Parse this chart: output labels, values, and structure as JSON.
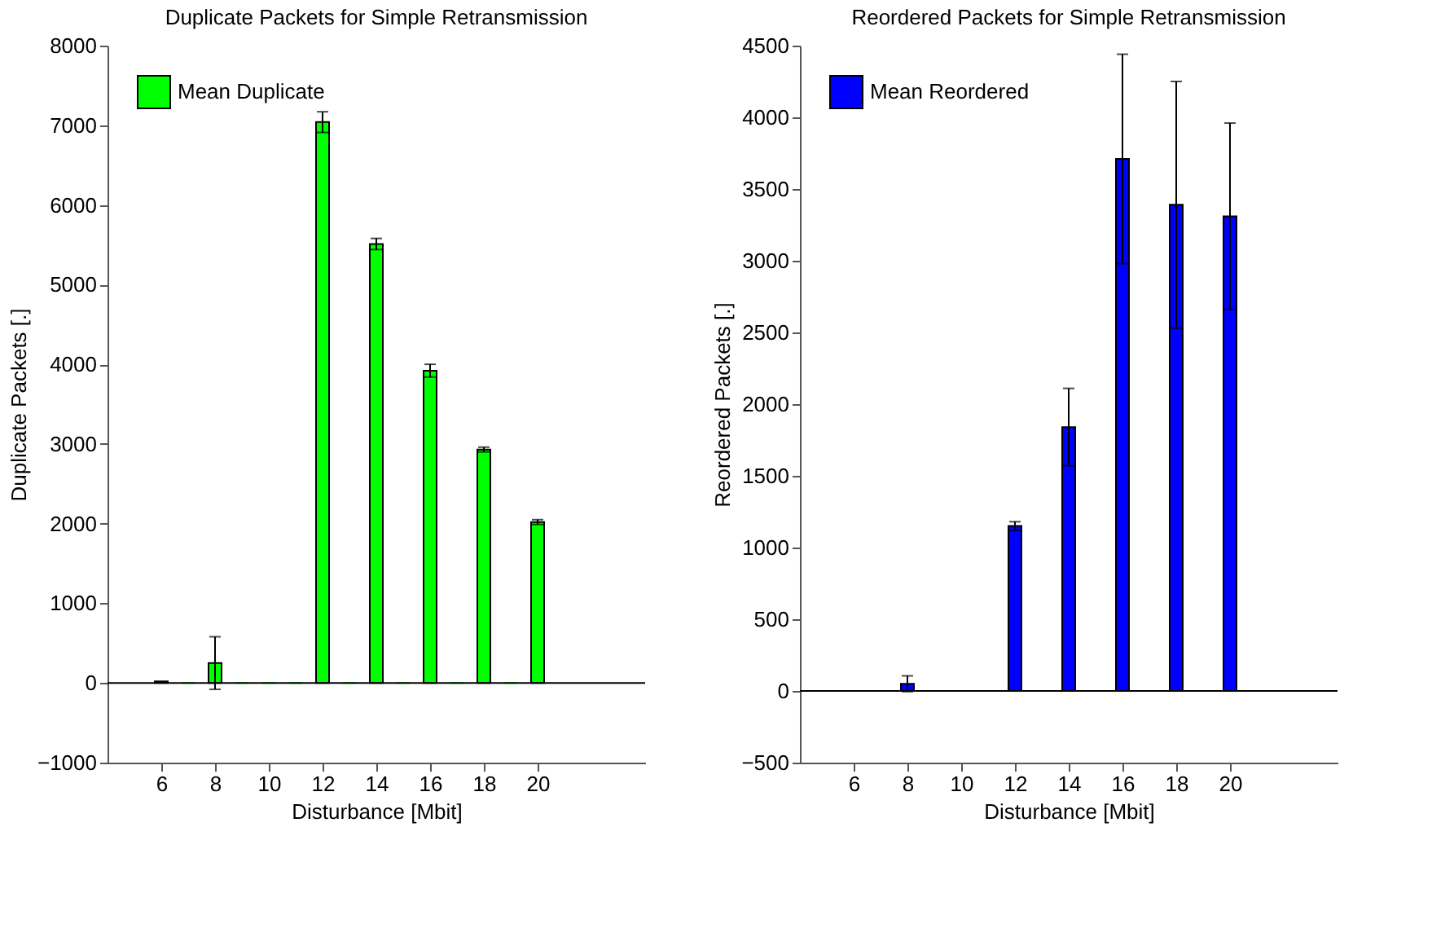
{
  "chart_data": [
    {
      "type": "bar",
      "title": "Duplicate Packets for Simple Retransmission",
      "xlabel": "Disturbance [Mbit]",
      "ylabel": "Duplicate Packets [.]",
      "x": [
        6,
        7,
        8,
        9,
        10,
        11,
        12,
        13,
        14,
        15,
        16,
        17,
        18,
        19,
        20
      ],
      "series": [
        {
          "name": "Mean Duplicate",
          "color": "#00ff00",
          "values": [
            20,
            0,
            250,
            0,
            0,
            0,
            7040,
            0,
            5510,
            0,
            3920,
            0,
            2930,
            0,
            2020
          ],
          "errors": [
            null,
            null,
            330,
            null,
            null,
            null,
            130,
            null,
            70,
            null,
            80,
            null,
            30,
            null,
            30
          ]
        }
      ],
      "xlim": [
        4,
        24
      ],
      "xticks": [
        6,
        8,
        10,
        12,
        14,
        16,
        18,
        20
      ],
      "ylim": [
        -1000,
        8000
      ],
      "yticks": [
        -1000,
        0,
        1000,
        2000,
        3000,
        4000,
        5000,
        6000,
        7000,
        8000
      ],
      "ref_lines": [
        {
          "axis": "y",
          "value": 0,
          "color": "#000000"
        }
      ],
      "grid": false,
      "legend": "top left"
    },
    {
      "type": "bar",
      "title": "Reordered Packets for Simple Retransmission",
      "xlabel": "Disturbance [Mbit]",
      "ylabel": "Reordered Packets [.]",
      "x": [
        6,
        7,
        8,
        9,
        10,
        11,
        12,
        13,
        14,
        15,
        16,
        17,
        18,
        19,
        20
      ],
      "series": [
        {
          "name": "Mean Reordered",
          "color": "#0000ff",
          "values": [
            0,
            0,
            50,
            0,
            0,
            0,
            1150,
            0,
            1840,
            0,
            3710,
            0,
            3390,
            0,
            3310
          ],
          "errors": [
            null,
            null,
            55,
            null,
            null,
            null,
            30,
            null,
            270,
            null,
            730,
            null,
            860,
            null,
            650
          ]
        }
      ],
      "xlim": [
        4,
        24
      ],
      "xticks": [
        6,
        8,
        10,
        12,
        14,
        16,
        18,
        20
      ],
      "ylim": [
        -500,
        4500
      ],
      "yticks": [
        -500,
        0,
        500,
        1000,
        1500,
        2000,
        2500,
        3000,
        3500,
        4000,
        4500
      ],
      "ref_lines": [
        {
          "axis": "y",
          "value": 0,
          "color": "#000000"
        }
      ],
      "grid": false,
      "legend": "top left"
    }
  ]
}
